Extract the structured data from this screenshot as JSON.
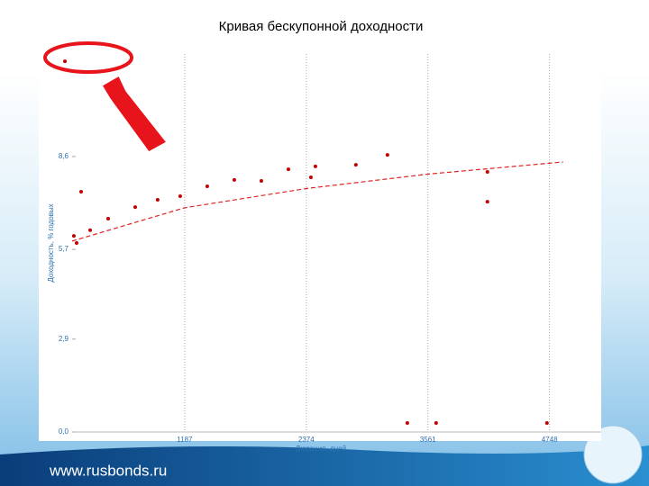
{
  "chart_data": {
    "type": "scatter",
    "title": "Кривая бескупонной доходности",
    "x_label": "Дюрация, дней",
    "y_label": "Доходность, % годовых",
    "x": [
      18,
      105,
      132,
      176,
      264,
      440,
      704,
      923,
      1143,
      1407,
      1671,
      1935,
      2199,
      2419,
      2463,
      2858,
      3166,
      4142,
      4142,
      3360,
      3641,
      4723
    ],
    "values": [
      11.57,
      6.12,
      5.9,
      7.5,
      6.3,
      6.66,
      7.02,
      7.25,
      7.36,
      7.67,
      7.87,
      7.84,
      8.2,
      7.95,
      8.29,
      8.34,
      8.65,
      8.12,
      7.19,
      0.28,
      0.28,
      0.28
    ],
    "color": "#c00000",
    "trend": {
      "x": [
        88,
        1187,
        2374,
        3561,
        4881
      ],
      "values": [
        5.96,
        7.0,
        7.6,
        8.05,
        8.43
      ],
      "color": "#e02020"
    },
    "xlim": [
      0,
      5200
    ],
    "ylim": [
      0,
      11.8
    ],
    "xticks": [
      1187,
      2374,
      3561,
      4748
    ],
    "yticks": [
      {
        "value": 0,
        "label": "0,0"
      },
      {
        "value": 2.9,
        "label": "2,9"
      },
      {
        "value": 5.7,
        "label": "5,7"
      },
      {
        "value": 8.6,
        "label": "8,6"
      }
    ],
    "grid": true
  },
  "footer": "www.rusbonds.ru"
}
